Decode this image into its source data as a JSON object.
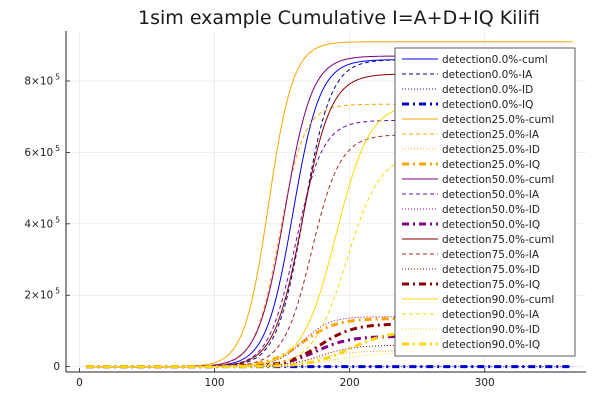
{
  "chart_data": {
    "type": "line",
    "title": "1sim example Cumulative I=A+D+IQ Kilifi",
    "xlim": [
      -10,
      375
    ],
    "ylim": [
      -15000,
      940000
    ],
    "x_ticks": [
      {
        "value": 0,
        "label": "0"
      },
      {
        "value": 100,
        "label": "100"
      },
      {
        "value": 200,
        "label": "200"
      },
      {
        "value": 300,
        "label": "300"
      }
    ],
    "y_ticks": [
      {
        "value": 0,
        "label": "0",
        "exp": ""
      },
      {
        "value": 200000,
        "label": "2×10",
        "exp": "5"
      },
      {
        "value": 400000,
        "label": "4×10",
        "exp": "5"
      },
      {
        "value": 600000,
        "label": "6×10",
        "exp": "5"
      },
      {
        "value": 800000,
        "label": "8×10",
        "exp": "5"
      }
    ],
    "grid": true,
    "legend_position": "right",
    "x_range": [
      5,
      365
    ],
    "series": [
      {
        "name": "detection0.0%-cuml",
        "color": "#0000ff",
        "style": "solid",
        "width": 1,
        "final": 860000,
        "midpoint": 158,
        "rate": 0.1
      },
      {
        "name": "detection0.0%-IA",
        "color": "#00008b",
        "style": "dash",
        "width": 1,
        "final": 860000,
        "midpoint": 166,
        "rate": 0.1
      },
      {
        "name": "detection0.0%-ID",
        "color": "#0000ff",
        "style": "dot",
        "width": 1,
        "final": 0,
        "midpoint": 170,
        "rate": 0.1
      },
      {
        "name": "detection0.0%-IQ",
        "color": "#0000cd",
        "style": "dashdot",
        "width": 3,
        "final": 0,
        "midpoint": 170,
        "rate": 0.1
      },
      {
        "name": "detection25.0%-cuml",
        "color": "#ffa500",
        "style": "solid",
        "width": 1,
        "final": 910000,
        "midpoint": 140,
        "rate": 0.11
      },
      {
        "name": "detection25.0%-IA",
        "color": "#ffa500",
        "style": "dash",
        "width": 1,
        "final": 735000,
        "midpoint": 148,
        "rate": 0.11
      },
      {
        "name": "detection25.0%-ID",
        "color": "#ffa500",
        "style": "dot",
        "width": 1,
        "final": 45000,
        "midpoint": 175,
        "rate": 0.07
      },
      {
        "name": "detection25.0%-IQ",
        "color": "#ffa500",
        "style": "dashdot",
        "width": 3,
        "final": 135000,
        "midpoint": 165,
        "rate": 0.08
      },
      {
        "name": "detection50.0%-cuml",
        "color": "#800080",
        "style": "solid",
        "width": 1,
        "final": 870000,
        "midpoint": 152,
        "rate": 0.1
      },
      {
        "name": "detection50.0%-IA",
        "color": "#6a0dad",
        "style": "dash",
        "width": 1,
        "final": 690000,
        "midpoint": 160,
        "rate": 0.1
      },
      {
        "name": "detection50.0%-ID",
        "color": "#800080",
        "style": "dot",
        "width": 1,
        "final": 140000,
        "midpoint": 165,
        "rate": 0.1
      },
      {
        "name": "detection50.0%-IQ",
        "color": "#800080",
        "style": "dashdot",
        "width": 3,
        "final": 85000,
        "midpoint": 175,
        "rate": 0.08
      },
      {
        "name": "detection75.0%-cuml",
        "color": "#8b0000",
        "style": "solid",
        "width": 1,
        "final": 820000,
        "midpoint": 165,
        "rate": 0.095
      },
      {
        "name": "detection75.0%-IA",
        "color": "#a52a2a",
        "style": "dash",
        "width": 1,
        "final": 650000,
        "midpoint": 172,
        "rate": 0.095
      },
      {
        "name": "detection75.0%-ID",
        "color": "#8b0000",
        "style": "dot",
        "width": 1,
        "final": 60000,
        "midpoint": 178,
        "rate": 0.08
      },
      {
        "name": "detection75.0%-IQ",
        "color": "#8b0000",
        "style": "dashdot",
        "width": 3,
        "final": 120000,
        "midpoint": 178,
        "rate": 0.08
      },
      {
        "name": "detection90.0%-cuml",
        "color": "#ffd700",
        "style": "solid",
        "width": 1,
        "final": 740000,
        "midpoint": 190,
        "rate": 0.08
      },
      {
        "name": "detection90.0%-IA",
        "color": "#ffd700",
        "style": "dash",
        "width": 1,
        "final": 600000,
        "midpoint": 198,
        "rate": 0.08
      },
      {
        "name": "detection90.0%-ID",
        "color": "#ffd700",
        "style": "dot",
        "width": 1,
        "final": 40000,
        "midpoint": 190,
        "rate": 0.06
      },
      {
        "name": "detection90.0%-IQ",
        "color": "#ffd700",
        "style": "dashdot",
        "width": 3,
        "final": 100000,
        "midpoint": 200,
        "rate": 0.07
      }
    ]
  }
}
